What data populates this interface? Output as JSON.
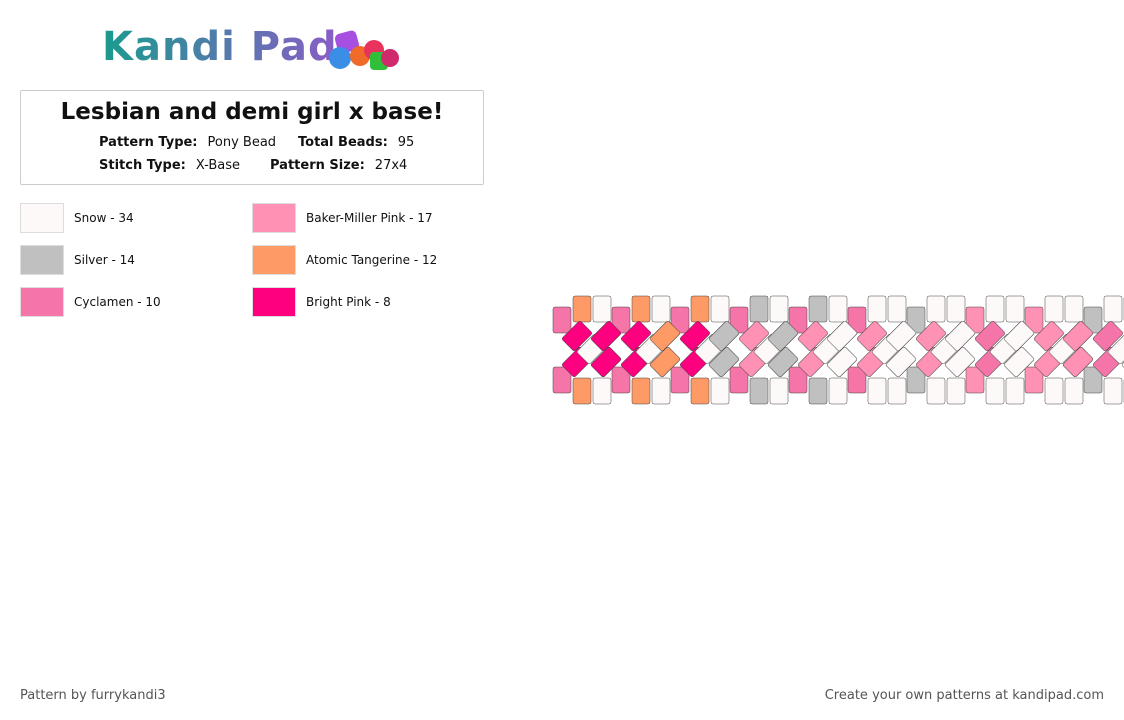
{
  "header": {
    "logo": "Kandi Pad"
  },
  "pattern": {
    "title": "Lesbian and demi girl x base!",
    "info": [
      {
        "label": "Pattern Type:",
        "value": "Pony Bead"
      },
      {
        "label": "Total Beads:",
        "value": "95"
      },
      {
        "label": "Stitch Type:",
        "value": "X-Base"
      },
      {
        "label": "Pattern Size:",
        "value": "27x4"
      }
    ]
  },
  "legend": [
    {
      "name": "Snow - 34",
      "color": "#fdf9f8"
    },
    {
      "name": "Baker-Miller Pink - 17",
      "color": "#fe91b4"
    },
    {
      "name": "Silver - 14",
      "color": "#c0c0c0"
    },
    {
      "name": "Atomic Tangerine - 12",
      "color": "#fe9a66"
    },
    {
      "name": "Cyclamen - 10",
      "color": "#f575a8"
    },
    {
      "name": "Bright Pink - 8",
      "color": "#fe007f"
    }
  ],
  "footer": {
    "credit": "Pattern by furrykandi3",
    "promo": "Create your own patterns at kandipad.com"
  }
}
